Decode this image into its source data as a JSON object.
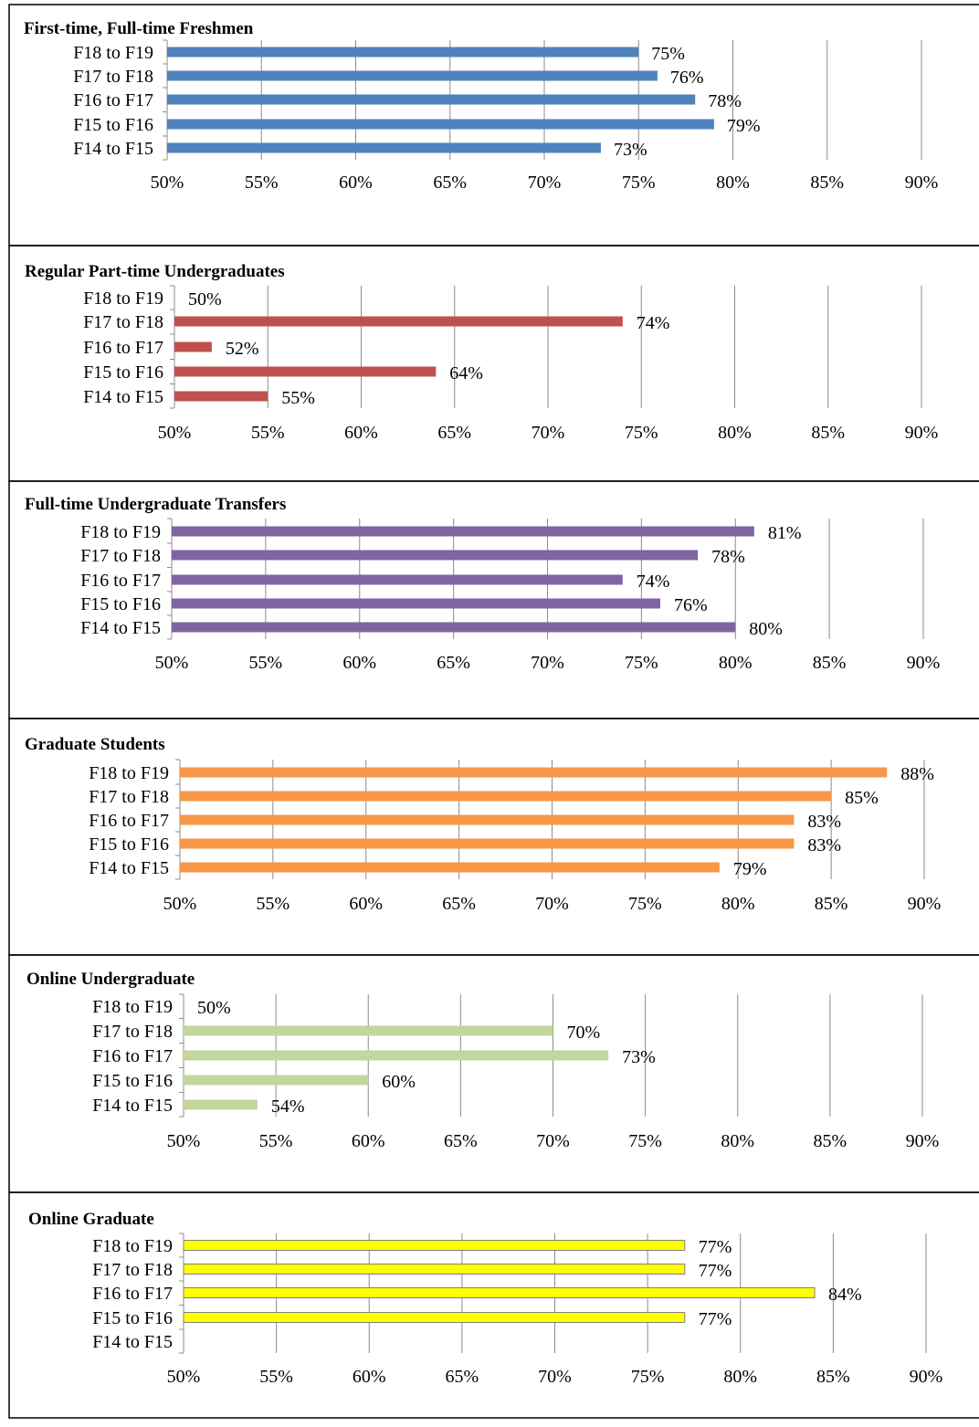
{
  "chart_data": [
    {
      "type": "bar",
      "orientation": "horizontal",
      "title": "First-time, Full-time Freshmen",
      "categories": [
        "F18 to F19",
        "F17 to F18",
        "F16 to F17",
        "F15 to F16",
        "F14 to F15"
      ],
      "values": [
        75,
        76,
        78,
        79,
        73
      ],
      "value_labels": [
        "75%",
        "76%",
        "78%",
        "79%",
        "73%"
      ],
      "xlim": [
        50,
        90
      ],
      "xticks": [
        50,
        55,
        60,
        65,
        70,
        75,
        80,
        85,
        90
      ],
      "xtick_labels": [
        "50%",
        "55%",
        "60%",
        "65%",
        "70%",
        "75%",
        "80%",
        "85%",
        "90%"
      ],
      "color": "#4f81bd",
      "grid": true,
      "legend": "none"
    },
    {
      "type": "bar",
      "orientation": "horizontal",
      "title": "Regular Part-time Undergraduates",
      "categories": [
        "F18 to F19",
        "F17 to F18",
        "F16 to F17",
        "F15 to F16",
        "F14 to F15"
      ],
      "values": [
        50,
        74,
        52,
        64,
        55
      ],
      "value_labels": [
        "50%",
        "74%",
        "52%",
        "64%",
        "55%"
      ],
      "xlim": [
        50,
        90
      ],
      "xticks": [
        50,
        55,
        60,
        65,
        70,
        75,
        80,
        85,
        90
      ],
      "xtick_labels": [
        "50%",
        "55%",
        "60%",
        "65%",
        "70%",
        "75%",
        "80%",
        "85%",
        "90%"
      ],
      "color": "#c0504d",
      "grid": true,
      "legend": "none"
    },
    {
      "type": "bar",
      "orientation": "horizontal",
      "title": "Full-time Undergraduate Transfers",
      "categories": [
        "F18 to F19",
        "F17 to F18",
        "F16 to F17",
        "F15 to F16",
        "F14 to F15"
      ],
      "values": [
        81,
        78,
        74,
        76,
        80
      ],
      "value_labels": [
        "81%",
        "78%",
        "74%",
        "76%",
        "80%"
      ],
      "xlim": [
        50,
        90
      ],
      "xticks": [
        50,
        55,
        60,
        65,
        70,
        75,
        80,
        85,
        90
      ],
      "xtick_labels": [
        "50%",
        "55%",
        "60%",
        "65%",
        "70%",
        "75%",
        "80%",
        "85%",
        "90%"
      ],
      "color": "#8064a2",
      "grid": true,
      "legend": "none"
    },
    {
      "type": "bar",
      "orientation": "horizontal",
      "title": "Graduate Students",
      "categories": [
        "F18 to F19",
        "F17 to F18",
        "F16 to F17",
        "F15 to F16",
        "F14 to F15"
      ],
      "values": [
        88,
        85,
        83,
        83,
        79
      ],
      "value_labels": [
        "88%",
        "85%",
        "83%",
        "83%",
        "79%"
      ],
      "xlim": [
        50,
        90
      ],
      "xticks": [
        50,
        55,
        60,
        65,
        70,
        75,
        80,
        85,
        90
      ],
      "xtick_labels": [
        "50%",
        "55%",
        "60%",
        "65%",
        "70%",
        "75%",
        "80%",
        "85%",
        "90%"
      ],
      "color": "#f79646",
      "grid": true,
      "legend": "none"
    },
    {
      "type": "bar",
      "orientation": "horizontal",
      "title": "Online Undergraduate",
      "categories": [
        "F18 to F19",
        "F17 to F18",
        "F16 to F17",
        "F15 to F16",
        "F14 to F15"
      ],
      "values": [
        50,
        70,
        73,
        60,
        54
      ],
      "value_labels": [
        "50%",
        "70%",
        "73%",
        "60%",
        "54%"
      ],
      "xlim": [
        50,
        90
      ],
      "xticks": [
        50,
        55,
        60,
        65,
        70,
        75,
        80,
        85,
        90
      ],
      "xtick_labels": [
        "50%",
        "55%",
        "60%",
        "65%",
        "70%",
        "75%",
        "80%",
        "85%",
        "90%"
      ],
      "color": "#c3d69b",
      "grid": true,
      "legend": "none"
    },
    {
      "type": "bar",
      "orientation": "horizontal",
      "title": "Online Graduate",
      "categories": [
        "F18 to F19",
        "F17 to F18",
        "F16 to F17",
        "F15 to F16",
        "F14 to F15"
      ],
      "values": [
        77,
        77,
        84,
        77,
        null
      ],
      "value_labels": [
        "77%",
        "77%",
        "84%",
        "77%",
        ""
      ],
      "xlim": [
        50,
        90
      ],
      "xticks": [
        50,
        55,
        60,
        65,
        70,
        75,
        80,
        85,
        90
      ],
      "xtick_labels": [
        "50%",
        "55%",
        "60%",
        "65%",
        "70%",
        "75%",
        "80%",
        "85%",
        "90%"
      ],
      "color": "#ffff00",
      "grid": true,
      "legend": "none"
    }
  ]
}
